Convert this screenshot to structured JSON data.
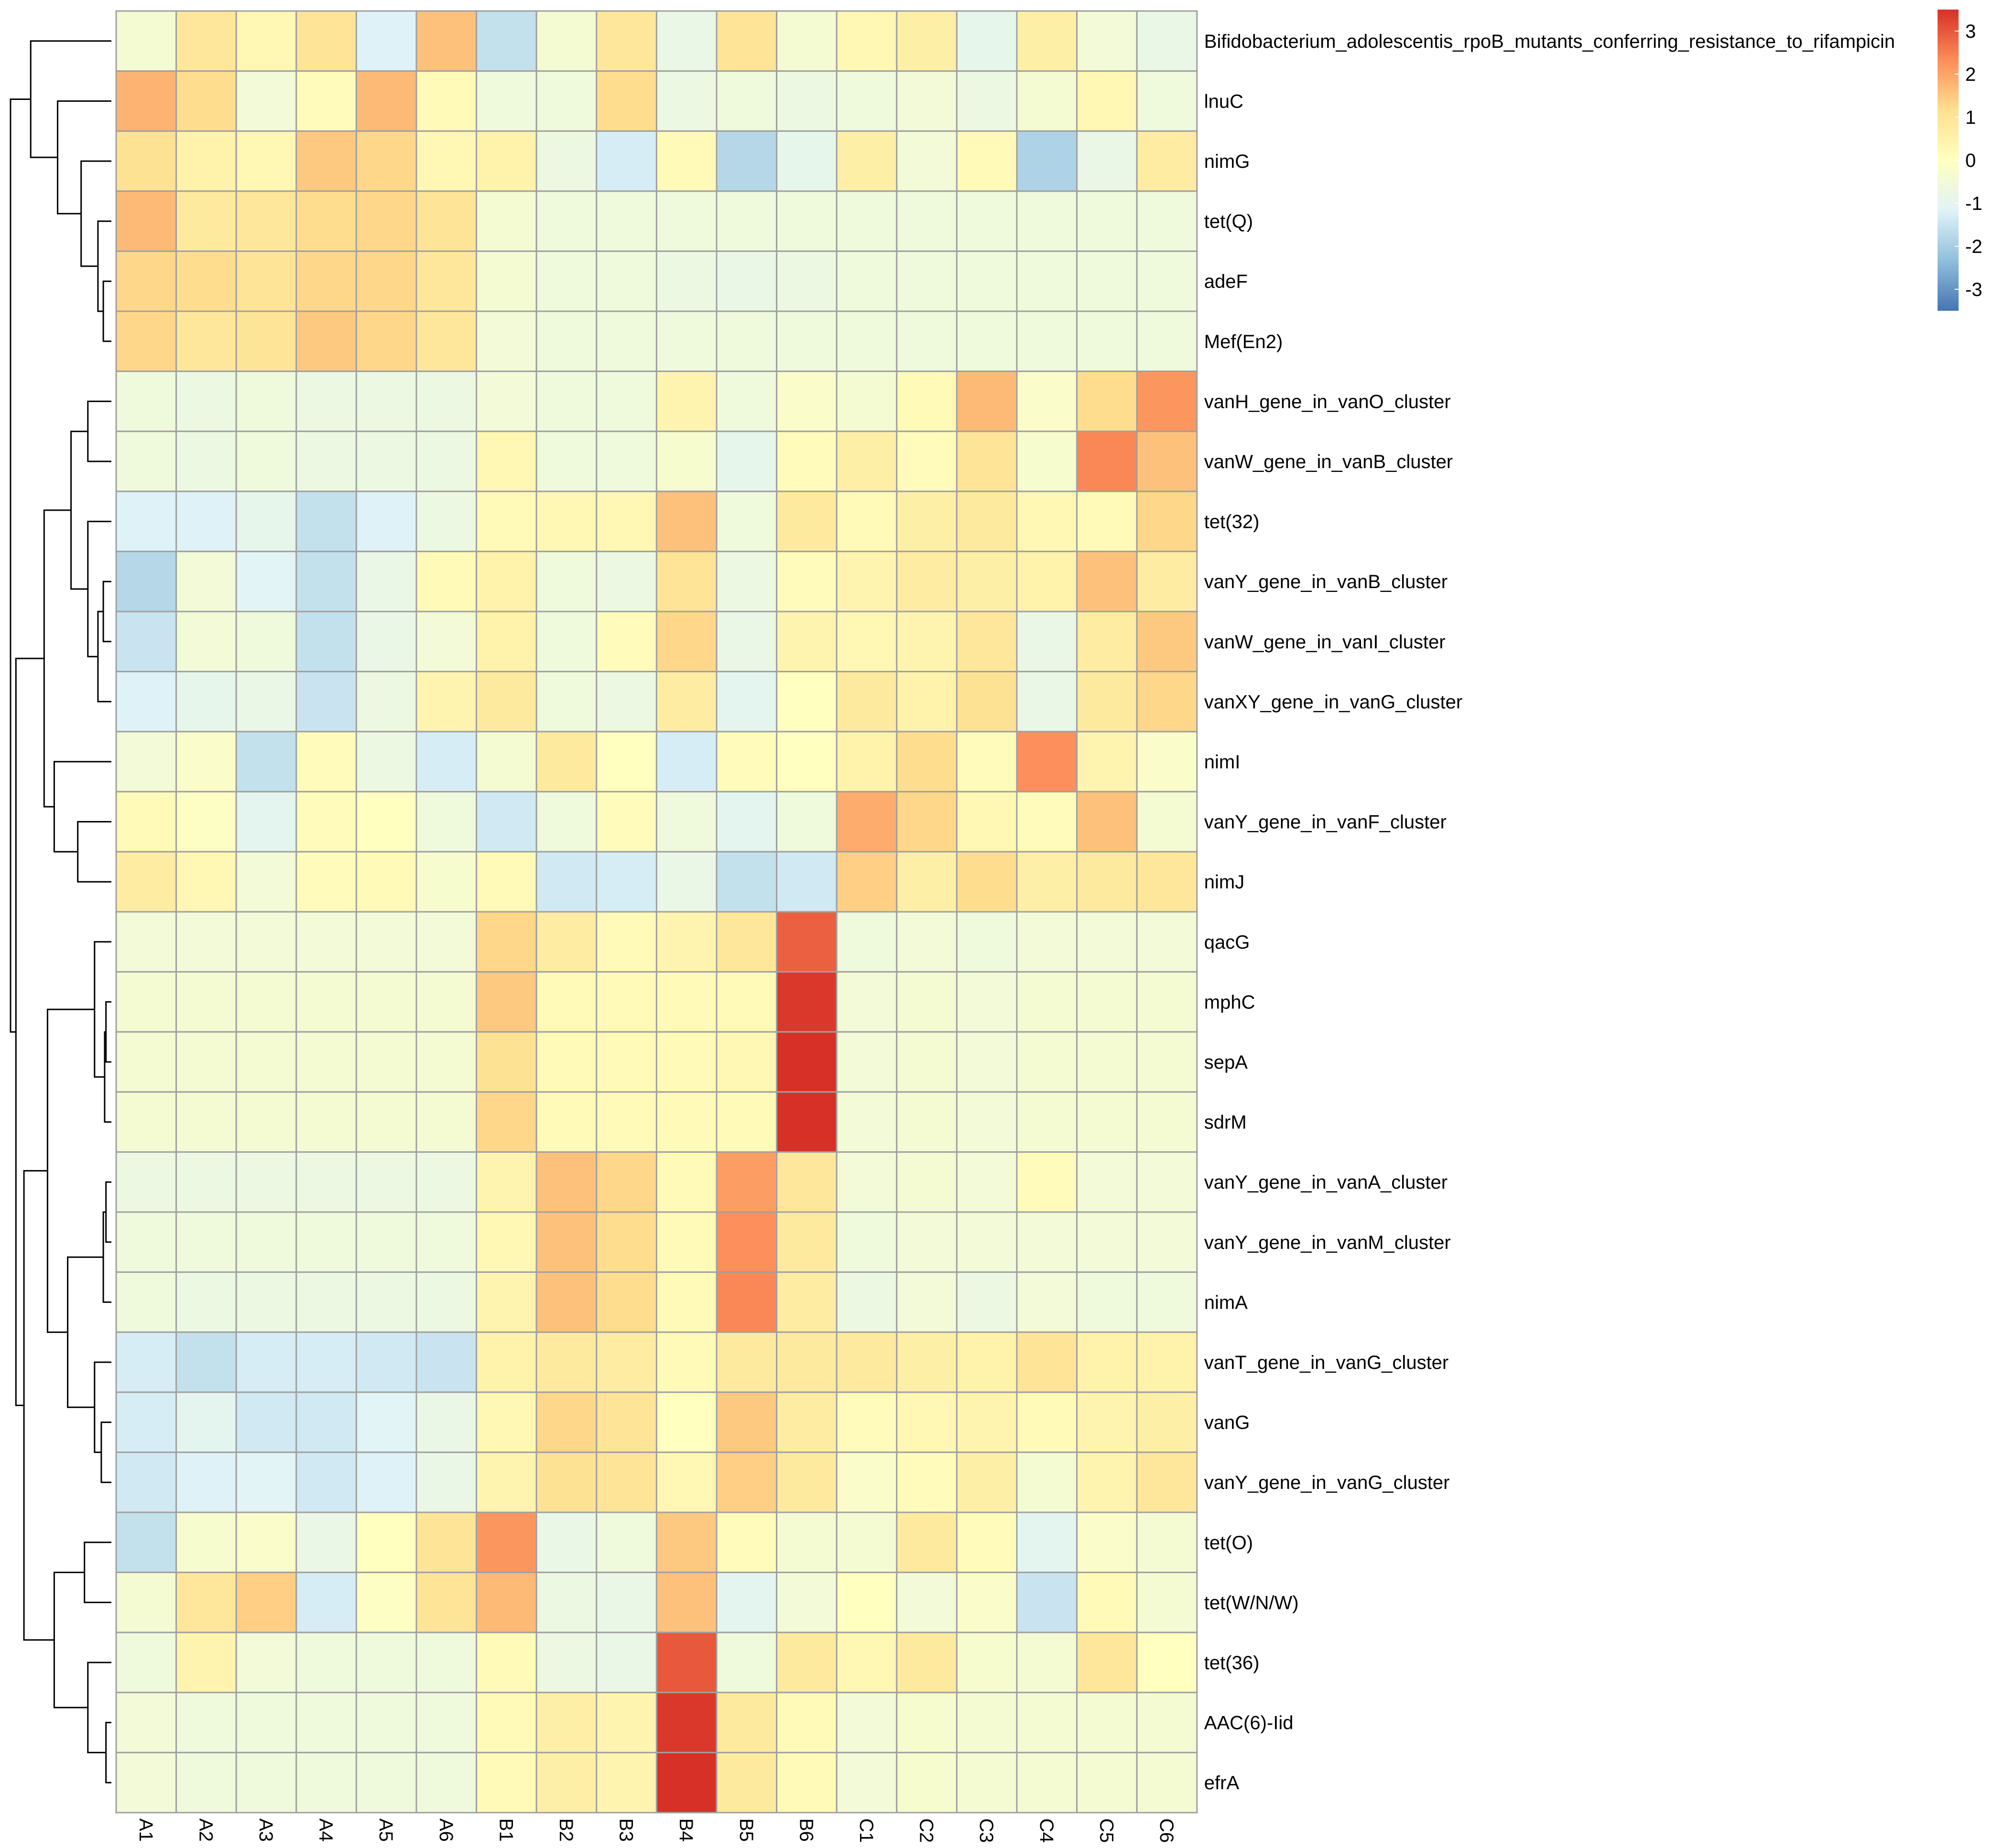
{
  "chart_data": {
    "type": "heatmap",
    "title": "",
    "xlabel": "",
    "ylabel": "",
    "columns": [
      "A1",
      "A2",
      "A3",
      "A4",
      "A5",
      "A6",
      "B1",
      "B2",
      "B3",
      "B4",
      "B5",
      "B6",
      "C1",
      "C2",
      "C3",
      "C4",
      "C5",
      "C6"
    ],
    "rows": [
      "Bifidobacterium_adolescentis_rpoB_mutants_conferring_resistance_to_rifampicin",
      "lnuC",
      "nimG",
      "tet(Q)",
      "adeF",
      "Mef(En2)",
      "vanH_gene_in_vanO_cluster",
      "vanW_gene_in_vanB_cluster",
      "tet(32)",
      "vanY_gene_in_vanB_cluster",
      "vanW_gene_in_vanI_cluster",
      "vanXY_gene_in_vanG_cluster",
      "nimI",
      "vanY_gene_in_vanF_cluster",
      "nimJ",
      "qacG",
      "mphC",
      "sepA",
      "sdrM",
      "vanY_gene_in_vanA_cluster",
      "vanY_gene_in_vanM_cluster",
      "nimA",
      "vanT_gene_in_vanG_cluster",
      "vanG",
      "vanY_gene_in_vanG_cluster",
      "tet(O)",
      "tet(W/N/W)",
      "tet(36)",
      "AAC(6)-Iid",
      "efrA"
    ],
    "values": [
      [
        -0.4,
        0.9,
        0.3,
        1.0,
        -1.2,
        1.6,
        -1.6,
        -0.4,
        0.9,
        -0.8,
        1.0,
        -0.4,
        0.3,
        0.6,
        -0.9,
        0.6,
        -0.5,
        -0.8
      ],
      [
        1.8,
        1.2,
        -0.5,
        0.1,
        1.7,
        0.2,
        -0.6,
        -0.6,
        1.2,
        -0.7,
        -0.6,
        -0.7,
        -0.6,
        -0.5,
        -0.7,
        -0.4,
        0.3,
        -0.6
      ],
      [
        1.1,
        0.5,
        0.3,
        1.5,
        1.3,
        0.3,
        0.5,
        -0.7,
        -1.3,
        0.2,
        -1.8,
        -0.9,
        0.6,
        -0.5,
        0.2,
        -1.9,
        -0.8,
        0.7
      ],
      [
        1.7,
        0.8,
        0.9,
        1.2,
        1.3,
        1.0,
        -0.4,
        -0.6,
        -0.6,
        -0.6,
        -0.6,
        -0.6,
        -0.6,
        -0.6,
        -0.6,
        -0.6,
        -0.6,
        -0.6
      ],
      [
        1.3,
        1.2,
        1.0,
        1.3,
        1.3,
        0.9,
        -0.4,
        -0.6,
        -0.6,
        -0.7,
        -0.8,
        -0.7,
        -0.6,
        -0.6,
        -0.6,
        -0.6,
        -0.6,
        -0.6
      ],
      [
        1.3,
        0.9,
        1.0,
        1.5,
        1.3,
        0.9,
        -0.5,
        -0.6,
        -0.6,
        -0.6,
        -0.6,
        -0.6,
        -0.6,
        -0.6,
        -0.6,
        -0.6,
        -0.6,
        -0.6
      ],
      [
        -0.6,
        -0.7,
        -0.6,
        -0.7,
        -0.7,
        -0.7,
        -0.5,
        -0.6,
        -0.6,
        0.4,
        -0.6,
        -0.2,
        -0.4,
        0.2,
        1.7,
        -0.2,
        1.2,
        2.2
      ],
      [
        -0.6,
        -0.7,
        -0.6,
        -0.7,
        -0.7,
        -0.7,
        0.3,
        -0.6,
        -0.6,
        -0.3,
        -0.9,
        0.1,
        0.6,
        0.1,
        1.0,
        -0.3,
        2.4,
        1.6
      ],
      [
        -1.2,
        -1.2,
        -0.9,
        -1.6,
        -1.2,
        -0.7,
        0.2,
        0.3,
        0.3,
        1.6,
        -0.6,
        0.8,
        0.2,
        0.6,
        0.8,
        0.3,
        0.2,
        1.3
      ],
      [
        -1.8,
        -0.5,
        -1.1,
        -1.6,
        -0.8,
        0.2,
        0.5,
        -0.6,
        -0.7,
        1.0,
        -0.7,
        0.1,
        0.4,
        0.7,
        0.6,
        0.5,
        1.6,
        0.7
      ],
      [
        -1.5,
        -0.5,
        -0.6,
        -1.6,
        -0.8,
        -0.5,
        0.5,
        -0.6,
        0.1,
        1.3,
        -0.8,
        0.4,
        0.3,
        0.4,
        0.9,
        -0.8,
        0.7,
        1.5
      ],
      [
        -1.2,
        -0.9,
        -0.8,
        -1.5,
        -0.7,
        0.4,
        0.8,
        -0.6,
        -0.7,
        0.7,
        -1.0,
        0.0,
        0.8,
        0.5,
        1.1,
        -0.8,
        0.8,
        1.3
      ],
      [
        -0.5,
        -0.2,
        -1.6,
        0.1,
        -0.7,
        -1.3,
        -0.4,
        0.8,
        0.0,
        -1.3,
        0.1,
        0.0,
        0.5,
        1.2,
        0.1,
        2.3,
        0.4,
        -0.2
      ],
      [
        0.2,
        -0.1,
        -1.0,
        0.1,
        0.0,
        -0.6,
        -1.4,
        -0.6,
        0.1,
        -0.6,
        -1.0,
        -0.6,
        1.9,
        1.3,
        0.3,
        0.1,
        1.6,
        -0.4
      ],
      [
        0.7,
        0.3,
        -0.5,
        0.1,
        0.2,
        -0.3,
        0.2,
        -1.4,
        -1.3,
        -0.8,
        -1.6,
        -1.4,
        1.4,
        0.6,
        1.2,
        0.6,
        0.8,
        0.9
      ],
      [
        -0.5,
        -0.5,
        -0.5,
        -0.5,
        -0.5,
        -0.5,
        1.3,
        0.7,
        0.2,
        0.4,
        0.9,
        2.9,
        -0.6,
        -0.5,
        -0.6,
        -0.5,
        -0.5,
        -0.5
      ],
      [
        -0.4,
        -0.4,
        -0.4,
        -0.4,
        -0.4,
        -0.4,
        1.5,
        0.2,
        0.2,
        0.2,
        0.2,
        3.4,
        -0.5,
        -0.4,
        -0.5,
        -0.4,
        -0.4,
        -0.4
      ],
      [
        -0.4,
        -0.4,
        -0.4,
        -0.4,
        -0.4,
        -0.4,
        1.1,
        0.2,
        0.2,
        0.2,
        0.3,
        3.5,
        -0.5,
        -0.4,
        -0.5,
        -0.4,
        -0.4,
        -0.4
      ],
      [
        -0.4,
        -0.4,
        -0.4,
        -0.4,
        -0.4,
        -0.4,
        1.3,
        0.2,
        0.2,
        0.2,
        0.2,
        3.5,
        -0.5,
        -0.4,
        -0.5,
        -0.4,
        -0.4,
        -0.4
      ],
      [
        -0.7,
        -0.7,
        -0.7,
        -0.7,
        -0.7,
        -0.7,
        0.4,
        1.6,
        1.3,
        0.2,
        2.1,
        0.9,
        -0.5,
        -0.4,
        -0.5,
        0.1,
        -0.5,
        -0.5
      ],
      [
        -0.6,
        -0.6,
        -0.6,
        -0.6,
        -0.6,
        -0.6,
        0.3,
        1.6,
        1.2,
        0.2,
        2.3,
        0.8,
        -0.6,
        -0.5,
        -0.5,
        -0.5,
        -0.5,
        -0.5
      ],
      [
        -0.6,
        -0.7,
        -0.7,
        -0.7,
        -0.7,
        -0.7,
        0.4,
        1.6,
        1.2,
        0.2,
        2.4,
        0.7,
        -0.7,
        -0.5,
        -0.7,
        -0.5,
        -0.6,
        -0.6
      ],
      [
        -1.3,
        -1.6,
        -1.3,
        -1.3,
        -1.4,
        -1.5,
        0.5,
        0.8,
        0.7,
        0.2,
        0.8,
        0.8,
        0.8,
        0.6,
        0.5,
        1.0,
        0.5,
        0.5
      ],
      [
        -1.3,
        -1.0,
        -1.4,
        -1.4,
        -1.1,
        -0.8,
        0.3,
        1.3,
        1.0,
        0.0,
        1.5,
        0.7,
        0.1,
        0.3,
        0.4,
        0.2,
        0.4,
        0.6
      ],
      [
        -1.4,
        -1.2,
        -1.1,
        -1.4,
        -1.2,
        -0.8,
        0.4,
        1.1,
        1.0,
        0.3,
        1.4,
        0.8,
        -0.2,
        0.1,
        0.6,
        -0.4,
        0.4,
        0.9
      ],
      [
        -1.6,
        -0.3,
        -0.2,
        -0.8,
        0.0,
        1.0,
        2.2,
        -0.8,
        -0.6,
        1.5,
        0.1,
        -0.4,
        -0.4,
        0.8,
        0.1,
        -1.0,
        -0.2,
        -0.4
      ],
      [
        -0.4,
        0.9,
        1.4,
        -1.3,
        -0.1,
        1.0,
        1.7,
        -0.7,
        -0.8,
        1.6,
        -1.0,
        -0.5,
        0.0,
        -0.5,
        -0.2,
        -1.5,
        0.2,
        -0.4
      ],
      [
        -0.6,
        0.4,
        -0.5,
        -0.6,
        -0.6,
        -0.6,
        0.2,
        -0.7,
        -0.8,
        3.0,
        -0.6,
        0.8,
        0.3,
        0.8,
        -0.3,
        -0.4,
        0.9,
        0.0
      ],
      [
        -0.5,
        -0.6,
        -0.6,
        -0.6,
        -0.6,
        -0.6,
        0.2,
        0.6,
        0.4,
        3.4,
        0.8,
        0.2,
        -0.5,
        -0.3,
        -0.4,
        -0.4,
        -0.4,
        -0.4
      ],
      [
        -0.5,
        -0.6,
        -0.6,
        -0.6,
        -0.6,
        -0.6,
        0.2,
        0.6,
        0.4,
        3.5,
        0.8,
        0.2,
        -0.5,
        -0.3,
        -0.4,
        -0.4,
        -0.4,
        -0.4
      ]
    ],
    "color_scale": {
      "min": -3.5,
      "max": 3.5,
      "ticks": [
        3,
        2,
        1,
        0,
        -1,
        -2,
        -3
      ],
      "colors": [
        "#4575B4",
        "#91BFDB",
        "#E0F3F8",
        "#FFFFBF",
        "#FEE090",
        "#FC8D59",
        "#D73027"
      ],
      "placement": "top-right"
    },
    "cell_border_color": "#A0A0A0",
    "row_dendrogram": {
      "leaf_order": [
        0,
        1,
        2,
        3,
        4,
        5,
        6,
        7,
        8,
        9,
        10,
        11,
        12,
        13,
        14,
        15,
        16,
        17,
        18,
        19,
        20,
        21,
        22,
        23,
        24,
        25,
        26,
        27,
        28,
        29
      ],
      "merges": [
        [
          16,
          17,
          0.08
        ],
        [
          18,
          30,
          0.1
        ],
        [
          15,
          31,
          0.25
        ],
        [
          28,
          29,
          0.08
        ],
        [
          27,
          33,
          0.35
        ],
        [
          25,
          26,
          0.4
        ],
        [
          19,
          20,
          0.08
        ],
        [
          21,
          36,
          0.12
        ],
        [
          23,
          24,
          0.15
        ],
        [
          22,
          38,
          0.25
        ],
        [
          37,
          39,
          0.65
        ],
        [
          32,
          40,
          0.95
        ],
        [
          35,
          34,
          0.85
        ],
        [
          41,
          42,
          1.3
        ],
        [
          4,
          5,
          0.12
        ],
        [
          3,
          44,
          0.2
        ],
        [
          2,
          45,
          0.45
        ],
        [
          1,
          46,
          0.8
        ],
        [
          0,
          47,
          1.2
        ],
        [
          9,
          10,
          0.12
        ],
        [
          11,
          49,
          0.2
        ],
        [
          8,
          50,
          0.35
        ],
        [
          6,
          7,
          0.35
        ],
        [
          52,
          51,
          0.6
        ],
        [
          13,
          14,
          0.5
        ],
        [
          12,
          54,
          0.85
        ],
        [
          53,
          55,
          1.0
        ],
        [
          56,
          43,
          1.42
        ],
        [
          48,
          57,
          1.5
        ]
      ]
    }
  }
}
